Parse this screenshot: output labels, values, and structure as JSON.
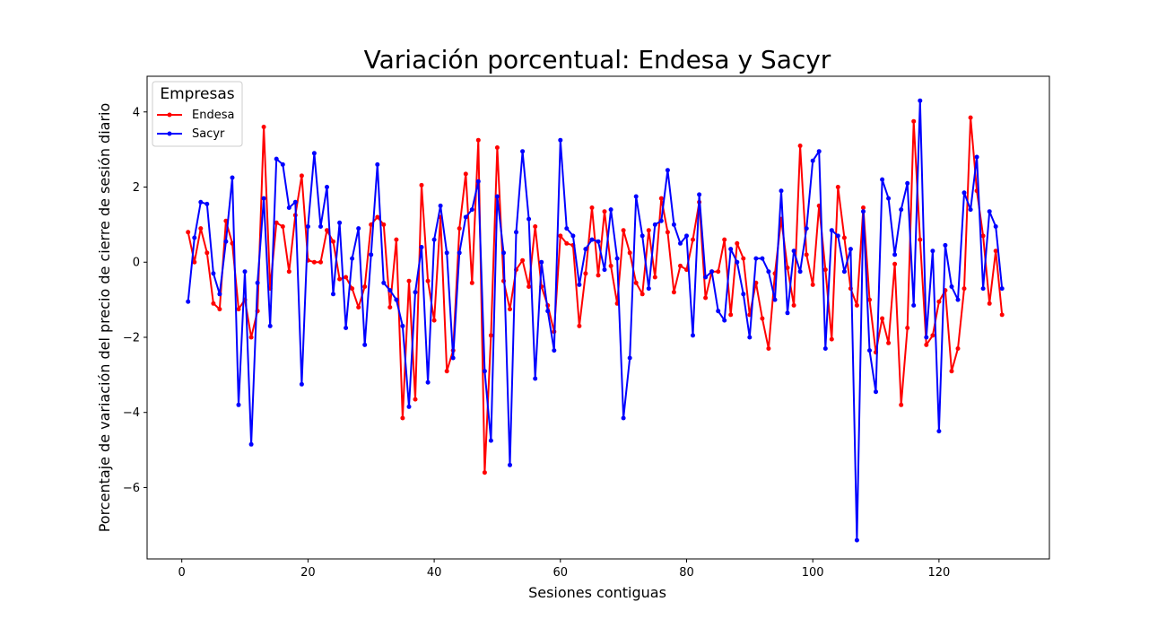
{
  "chart_data": {
    "type": "line",
    "title": "Variación porcentual: Endesa y Sacyr",
    "xlabel": "Sesiones contiguas",
    "ylabel": "Porcentaje de variación del precio de cierre de sesión diario",
    "xlim": [
      -5.5,
      137.5
    ],
    "ylim": [
      -7.9,
      4.95
    ],
    "x_ticks": [
      0,
      20,
      40,
      60,
      80,
      100,
      120
    ],
    "x_tick_labels": [
      "0",
      "20",
      "40",
      "60",
      "80",
      "100",
      "120"
    ],
    "y_ticks": [
      -6,
      -4,
      -2,
      0,
      2,
      4
    ],
    "y_tick_labels": [
      "−6",
      "−4",
      "−2",
      "0",
      "2",
      "4"
    ],
    "grid": false,
    "legend": {
      "title": "Empresas",
      "placement": "top-left"
    },
    "x": [
      1,
      2,
      3,
      4,
      5,
      6,
      7,
      8,
      9,
      10,
      11,
      12,
      13,
      14,
      15,
      16,
      17,
      18,
      19,
      20,
      21,
      22,
      23,
      24,
      25,
      26,
      27,
      28,
      29,
      30,
      31,
      32,
      33,
      34,
      35,
      36,
      37,
      38,
      39,
      40,
      41,
      42,
      43,
      44,
      45,
      46,
      47,
      48,
      49,
      50,
      51,
      52,
      53,
      54,
      55,
      56,
      57,
      58,
      59,
      60,
      61,
      62,
      63,
      64,
      65,
      66,
      67,
      68,
      69,
      70,
      71,
      72,
      73,
      74,
      75,
      76,
      77,
      78,
      79,
      80,
      81,
      82,
      83,
      84,
      85,
      86,
      87,
      88,
      89,
      90,
      91,
      92,
      93,
      94,
      95,
      96,
      97,
      98,
      99,
      100,
      101,
      102,
      103,
      104,
      105,
      106,
      107,
      108,
      109,
      110,
      111,
      112,
      113,
      114,
      115,
      116,
      117,
      118,
      119,
      120,
      121,
      122,
      123,
      124,
      125,
      126,
      127,
      128,
      129,
      130
    ],
    "series": [
      {
        "name": "Endesa",
        "color": "#ff0000",
        "values": [
          0.8,
          0.0,
          0.9,
          0.25,
          -1.1,
          -1.25,
          1.1,
          0.5,
          -1.25,
          -1.0,
          -2.0,
          -1.3,
          3.6,
          -0.7,
          1.05,
          0.95,
          -0.25,
          1.25,
          2.3,
          0.05,
          0.0,
          0.0,
          0.85,
          0.55,
          -0.45,
          -0.4,
          -0.7,
          -1.2,
          -0.65,
          1.0,
          1.2,
          1.0,
          -1.2,
          0.6,
          -4.15,
          -0.5,
          -3.65,
          2.05,
          -0.5,
          -1.55,
          1.2,
          -2.9,
          -2.35,
          0.9,
          2.35,
          -0.55,
          3.25,
          -5.6,
          -1.95,
          3.05,
          -0.5,
          -1.25,
          -0.2,
          0.05,
          -0.65,
          0.95,
          -0.65,
          -1.15,
          -1.85,
          0.7,
          0.5,
          0.45,
          -1.7,
          -0.3,
          1.45,
          -0.35,
          1.35,
          -0.1,
          -1.1,
          0.85,
          0.25,
          -0.55,
          -0.85,
          0.85,
          -0.4,
          1.7,
          0.8,
          -0.8,
          -0.1,
          -0.2,
          0.6,
          1.6,
          -0.95,
          -0.25,
          -0.25,
          0.6,
          -1.4,
          0.5,
          0.1,
          -1.4,
          -0.55,
          -1.5,
          -2.3,
          -0.3,
          1.15,
          -0.15,
          -1.15,
          3.1,
          0.2,
          -0.6,
          1.5,
          -0.2,
          -2.05,
          2.0,
          0.65,
          -0.7,
          -1.15,
          1.45,
          -1.0,
          -2.4,
          -1.5,
          -2.15,
          -0.05,
          -3.8,
          -1.75,
          3.75,
          0.6,
          -2.2,
          -1.95,
          -1.05,
          -0.75,
          -2.9,
          -2.3,
          -0.7,
          3.85,
          1.9,
          0.7,
          -1.1,
          0.3,
          -1.4
        ]
      },
      {
        "name": "Sacyr",
        "color": "#0000ff",
        "values": [
          -1.05,
          0.65,
          1.6,
          1.55,
          -0.3,
          -0.85,
          0.55,
          2.25,
          -3.8,
          -0.25,
          -4.85,
          -0.55,
          1.7,
          -1.7,
          2.75,
          2.6,
          1.45,
          1.6,
          -3.25,
          0.95,
          2.9,
          0.95,
          2.0,
          -0.85,
          1.05,
          -1.75,
          0.1,
          0.9,
          -2.2,
          0.2,
          2.6,
          -0.55,
          -0.75,
          -1.0,
          -1.7,
          -3.85,
          -0.8,
          0.4,
          -3.2,
          0.6,
          1.5,
          0.25,
          -2.55,
          0.25,
          1.2,
          1.4,
          2.15,
          -2.9,
          -4.75,
          1.75,
          0.25,
          -5.4,
          0.8,
          2.95,
          1.15,
          -3.1,
          0.0,
          -1.3,
          -2.35,
          3.25,
          0.9,
          0.7,
          -0.6,
          0.35,
          0.6,
          0.55,
          -0.2,
          1.4,
          0.1,
          -4.15,
          -2.55,
          1.75,
          0.7,
          -0.7,
          1.0,
          1.1,
          2.45,
          1.0,
          0.5,
          0.7,
          -1.95,
          1.8,
          -0.4,
          -0.25,
          -1.3,
          -1.55,
          0.35,
          0.0,
          -0.85,
          -2.0,
          0.1,
          0.1,
          -0.25,
          -1.0,
          1.9,
          -1.35,
          0.3,
          -0.25,
          0.9,
          2.7,
          2.95,
          -2.3,
          0.85,
          0.7,
          -0.25,
          0.35,
          -7.4,
          1.35,
          -2.35,
          -3.45,
          2.2,
          1.7,
          0.2,
          1.4,
          2.1,
          -1.15,
          4.3,
          -2.0,
          0.3,
          -4.5,
          0.45,
          -0.65,
          -1.0,
          1.85,
          1.4,
          2.8,
          -0.7,
          1.35,
          0.95,
          -0.7
        ]
      }
    ]
  }
}
